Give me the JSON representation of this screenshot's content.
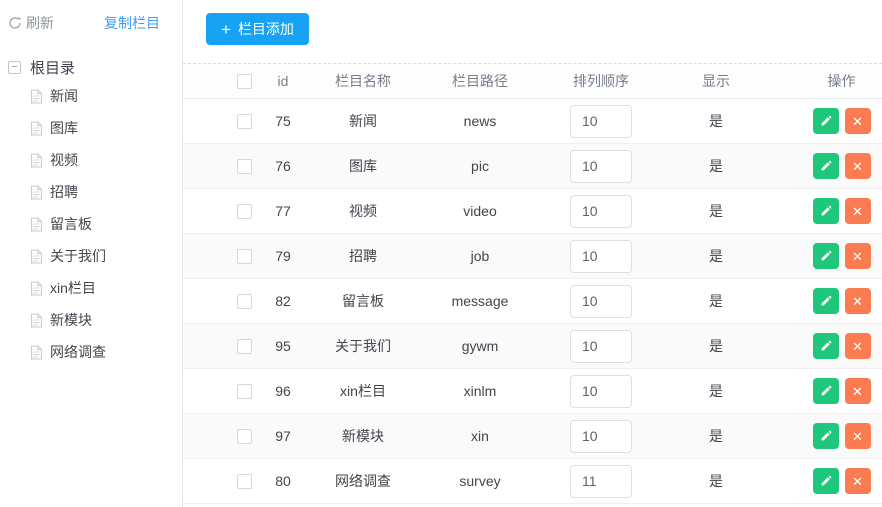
{
  "sidebar": {
    "toolbar": {
      "refresh_label": "刷新",
      "copy_label": "复制栏目"
    },
    "tree": {
      "root": "根目录",
      "items": [
        "新闻",
        "图库",
        "视频",
        "招聘",
        "留言板",
        "关于我们",
        "xin栏目",
        "新模块",
        "网络调查"
      ]
    }
  },
  "main": {
    "add_button_label": "栏目添加",
    "add_button_plus": "+",
    "table": {
      "columns": {
        "id": "id",
        "name": "栏目名称",
        "path": "栏目路径",
        "order": "排列顺序",
        "show": "显示",
        "ops": "操作"
      },
      "rows": [
        {
          "id": "75",
          "name": "新闻",
          "path": "news",
          "order": "10",
          "show": "是"
        },
        {
          "id": "76",
          "name": "图库",
          "path": "pic",
          "order": "10",
          "show": "是"
        },
        {
          "id": "77",
          "name": "视频",
          "path": "video",
          "order": "10",
          "show": "是"
        },
        {
          "id": "79",
          "name": "招聘",
          "path": "job",
          "order": "10",
          "show": "是"
        },
        {
          "id": "82",
          "name": "留言板",
          "path": "message",
          "order": "10",
          "show": "是"
        },
        {
          "id": "95",
          "name": "关于我们",
          "path": "gywm",
          "order": "10",
          "show": "是"
        },
        {
          "id": "96",
          "name": "xin栏目",
          "path": "xinlm",
          "order": "10",
          "show": "是"
        },
        {
          "id": "97",
          "name": "新模块",
          "path": "xin",
          "order": "10",
          "show": "是"
        },
        {
          "id": "80",
          "name": "网络调查",
          "path": "survey",
          "order": "11",
          "show": "是"
        }
      ],
      "delete_glyph": "✕",
      "collapse_glyph": "−"
    }
  },
  "colors": {
    "accent_blue": "#16a3f3",
    "link_blue": "#3f9df5",
    "edit_green": "#1ec77c",
    "delete_orange": "#fa7c50"
  }
}
